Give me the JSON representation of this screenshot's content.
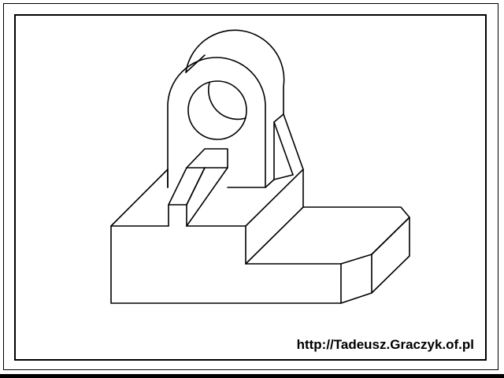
{
  "footer": {
    "url": "http://Tadeusz.Graczyk.of.pl"
  },
  "colors": {
    "line": "#000000",
    "background": "#ffffff"
  }
}
